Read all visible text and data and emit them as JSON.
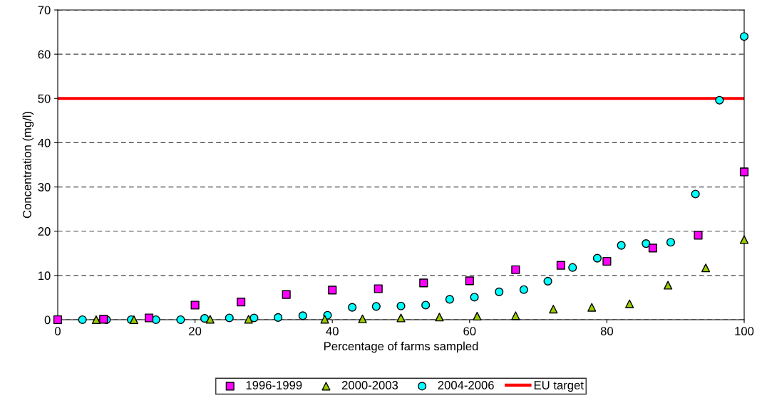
{
  "chart_data": {
    "type": "scatter",
    "xlabel": "Percentage of farms sampled",
    "ylabel": "Concentration (mg/l)",
    "xlim": [
      0,
      100
    ],
    "xticks": [
      0,
      20,
      40,
      60,
      80,
      100
    ],
    "ylim": [
      0,
      70
    ],
    "yticks": [
      0,
      10,
      20,
      30,
      40,
      50,
      60,
      70
    ],
    "grid": "y",
    "legend": "bottom",
    "series": [
      {
        "name": "1996-1999",
        "color": "#ff00ff",
        "marker": "square",
        "x": [
          0,
          6.67,
          13.3,
          20,
          26.7,
          33.3,
          40,
          46.7,
          53.3,
          60,
          66.7,
          73.3,
          80,
          86.7,
          93.3,
          100
        ],
        "values": [
          0,
          0.1,
          0.4,
          3.3,
          4.0,
          5.7,
          6.7,
          7.0,
          8.3,
          8.8,
          11.3,
          12.3,
          13.2,
          16.2,
          19.1,
          33.4
        ]
      },
      {
        "name": "2000-2003",
        "color": "#99cc00",
        "marker": "triangle",
        "x": [
          5.6,
          11.1,
          22.2,
          27.8,
          38.9,
          44.4,
          50,
          55.6,
          61.1,
          66.7,
          72.2,
          77.8,
          83.3,
          88.9,
          94.4,
          100
        ],
        "values": [
          0,
          0,
          0.1,
          0.1,
          0.1,
          0.2,
          0.4,
          0.6,
          0.8,
          0.9,
          2.4,
          2.8,
          3.6,
          7.8,
          11.7,
          18.1
        ]
      },
      {
        "name": "2004-2006",
        "color": "#00ffff",
        "marker": "circle",
        "x": [
          3.6,
          7.1,
          10.7,
          14.3,
          17.9,
          21.4,
          25,
          28.6,
          32.1,
          35.7,
          39.3,
          42.9,
          46.4,
          50,
          53.6,
          57.1,
          60.7,
          64.3,
          67.9,
          71.4,
          75,
          78.6,
          82.1,
          85.7,
          89.3,
          92.9,
          96.4,
          100
        ],
        "values": [
          0,
          0,
          0,
          0,
          0,
          0.3,
          0.4,
          0.4,
          0.5,
          0.9,
          1.0,
          2.8,
          3.0,
          3.1,
          3.3,
          4.6,
          5.1,
          6.3,
          6.8,
          8.7,
          11.8,
          13.9,
          16.8,
          17.2,
          17.5,
          28.4,
          49.6,
          64.0
        ]
      }
    ],
    "ref_lines": [
      {
        "axis": "y",
        "value": 50,
        "label": "EU target",
        "color": "#ff0000",
        "line_style": "solid"
      }
    ]
  }
}
